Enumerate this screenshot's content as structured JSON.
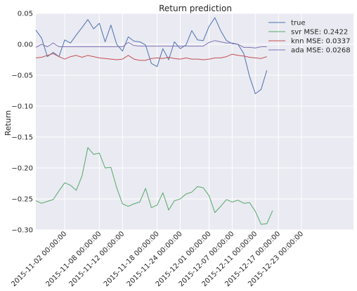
{
  "chart_data": {
    "type": "line",
    "title": "Return prediction",
    "xlabel": "",
    "ylabel": "Return",
    "ylim": [
      -0.3,
      0.05
    ],
    "yticks": [
      0.05,
      0.0,
      -0.05,
      -0.1,
      -0.15,
      -0.2,
      -0.25,
      -0.3
    ],
    "ytick_labels": [
      "0.05",
      "0.00",
      "−0.05",
      "−0.10",
      "−0.15",
      "−0.20",
      "−0.25",
      "−0.30"
    ],
    "xtick_labels": [
      "2015-11-02 00:00:00",
      "2015-11-08 00:00:00",
      "2015-11-12 00:00:00",
      "2015-11-18 00:00:00",
      "2015-11-24 00:00:00",
      "2015-12-01 00:00:00",
      "2015-12-07 00:00:00",
      "2015-12-11 00:00:00",
      "2015-12-17 00:00:00",
      "2015-12-23 00:00:00"
    ],
    "xtick_positions": [
      5,
      11,
      15,
      21,
      25,
      30,
      34,
      38,
      42,
      46
    ],
    "x_count": 56,
    "grid": true,
    "legend_position": "top-right",
    "background_color": "#EAEAF2",
    "series": [
      {
        "name": "true",
        "color": "#4C72B0",
        "values": [
          0.023,
          0.01,
          -0.02,
          -0.013,
          -0.02,
          0.007,
          0.002,
          0.015,
          0.027,
          0.04,
          0.025,
          0.034,
          0.004,
          0.031,
          0.0,
          -0.011,
          0.012,
          0.005,
          0.004,
          -0.001,
          -0.031,
          -0.036,
          -0.007,
          -0.025,
          0.004,
          -0.007,
          -0.001,
          0.022,
          0.007,
          0.006,
          0.029,
          0.043,
          0.022,
          0.006,
          0.001,
          0.0,
          -0.015,
          -0.052,
          -0.08,
          -0.073,
          -0.042
        ]
      },
      {
        "name": "svr MSE: 0.2422",
        "color": "#55A868",
        "values": [
          -0.253,
          -0.257,
          -0.254,
          -0.251,
          -0.237,
          -0.224,
          -0.228,
          -0.236,
          -0.213,
          -0.167,
          -0.178,
          -0.176,
          -0.2,
          -0.199,
          -0.232,
          -0.258,
          -0.262,
          -0.258,
          -0.255,
          -0.233,
          -0.264,
          -0.26,
          -0.24,
          -0.268,
          -0.253,
          -0.25,
          -0.242,
          -0.239,
          -0.23,
          -0.232,
          -0.245,
          -0.272,
          -0.262,
          -0.251,
          -0.255,
          -0.252,
          -0.257,
          -0.256,
          -0.27,
          -0.291,
          -0.29,
          -0.269
        ]
      },
      {
        "name": "knn MSE: 0.0337",
        "color": "#C44E52",
        "values": [
          -0.022,
          -0.021,
          -0.018,
          -0.015,
          -0.02,
          -0.024,
          -0.02,
          -0.018,
          -0.021,
          -0.018,
          -0.02,
          -0.022,
          -0.023,
          -0.024,
          -0.025,
          -0.024,
          -0.018,
          -0.024,
          -0.026,
          -0.026,
          -0.023,
          -0.022,
          -0.023,
          -0.021,
          -0.023,
          -0.024,
          -0.022,
          -0.024,
          -0.024,
          -0.025,
          -0.024,
          -0.022,
          -0.022,
          -0.02,
          -0.016,
          -0.018,
          -0.019,
          -0.021,
          -0.022,
          -0.023,
          -0.02
        ]
      },
      {
        "name": "ada MSE: 0.0268",
        "color": "#8172B2",
        "values": [
          -0.005,
          0.0,
          -0.004,
          0.002,
          -0.004,
          -0.004,
          -0.004,
          -0.004,
          -0.004,
          -0.004,
          -0.004,
          -0.004,
          -0.004,
          -0.004,
          -0.004,
          -0.004,
          0.003,
          -0.002,
          -0.003,
          -0.003,
          -0.003,
          -0.003,
          -0.003,
          -0.003,
          -0.003,
          -0.003,
          -0.003,
          -0.003,
          -0.003,
          -0.003,
          0.003,
          0.006,
          0.004,
          0.002,
          0.002,
          0.0,
          -0.005,
          -0.005,
          -0.006,
          -0.004,
          -0.004
        ]
      }
    ]
  }
}
